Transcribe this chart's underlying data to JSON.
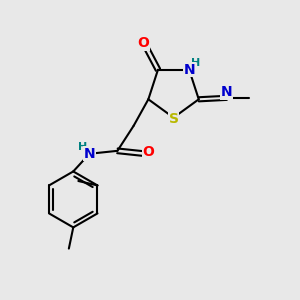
{
  "background_color": "#e8e8e8",
  "bond_color": "#000000",
  "bond_width": 1.5,
  "atom_colors": {
    "O": "#ff0000",
    "N": "#0000cd",
    "S": "#b8b800",
    "H_label": "#008080",
    "C": "#000000"
  },
  "font_size": 8,
  "fig_size": [
    3.0,
    3.0
  ],
  "dpi": 100
}
